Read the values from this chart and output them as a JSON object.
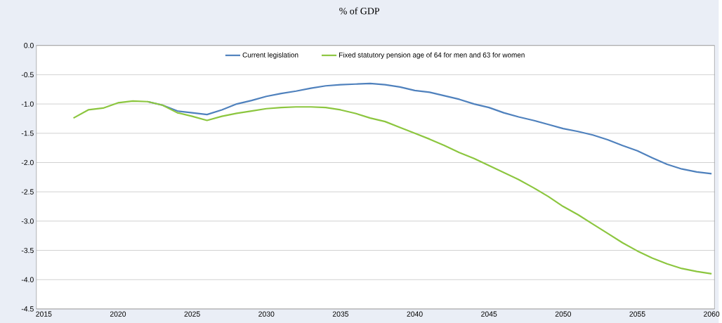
{
  "chart_data": {
    "type": "line",
    "title": "% of GDP",
    "x": [
      2017,
      2018,
      2019,
      2020,
      2021,
      2022,
      2023,
      2024,
      2025,
      2026,
      2027,
      2028,
      2029,
      2030,
      2031,
      2032,
      2033,
      2034,
      2035,
      2036,
      2037,
      2038,
      2039,
      2040,
      2041,
      2042,
      2043,
      2044,
      2045,
      2046,
      2047,
      2048,
      2049,
      2050,
      2051,
      2052,
      2053,
      2054,
      2055,
      2056,
      2057,
      2058,
      2059,
      2060
    ],
    "series": [
      {
        "name": "Current legislation",
        "color": "#4f81bd",
        "values": [
          null,
          null,
          null,
          null,
          null,
          -0.96,
          -1.02,
          -1.12,
          -1.15,
          -1.18,
          -1.1,
          -1.0,
          -0.94,
          -0.87,
          -0.82,
          -0.78,
          -0.73,
          -0.69,
          -0.67,
          -0.66,
          -0.65,
          -0.67,
          -0.71,
          -0.77,
          -0.8,
          -0.86,
          -0.92,
          -1.0,
          -1.06,
          -1.15,
          -1.22,
          -1.28,
          -1.35,
          -1.42,
          -1.47,
          -1.53,
          -1.61,
          -1.71,
          -1.8,
          -1.92,
          -2.03,
          -2.11,
          -2.16,
          -2.19
        ]
      },
      {
        "name": "Fixed statutory pension age of 64 for men and 63 for women",
        "color": "#8cc63f",
        "values": [
          -1.24,
          -1.1,
          -1.07,
          -0.98,
          -0.95,
          -0.96,
          -1.02,
          -1.15,
          -1.21,
          -1.28,
          -1.21,
          -1.16,
          -1.12,
          -1.08,
          -1.06,
          -1.05,
          -1.05,
          -1.06,
          -1.1,
          -1.16,
          -1.24,
          -1.3,
          -1.4,
          -1.5,
          -1.6,
          -1.71,
          -1.83,
          -1.93,
          -2.05,
          -2.17,
          -2.29,
          -2.43,
          -2.58,
          -2.75,
          -2.89,
          -3.05,
          -3.21,
          -3.37,
          -3.51,
          -3.63,
          -3.73,
          -3.81,
          -3.86,
          -3.9
        ]
      }
    ],
    "xlim": [
      2014.5,
      2060.2
    ],
    "xticks": [
      2015,
      2020,
      2025,
      2030,
      2035,
      2040,
      2045,
      2050,
      2055,
      2060
    ],
    "ylim": [
      -4.5,
      0
    ],
    "yticks": [
      {
        "value": -4.5,
        "label": "-4.5"
      },
      {
        "value": -4.0,
        "label": "-4.0"
      },
      {
        "value": -3.5,
        "label": "-3.5"
      },
      {
        "value": -3.0,
        "label": "-3.0"
      },
      {
        "value": -2.5,
        "label": "-2.5"
      },
      {
        "value": -2.0,
        "label": "-2.0"
      },
      {
        "value": -1.5,
        "label": "-1.5"
      },
      {
        "value": -1.0,
        "label": "-1.0"
      },
      {
        "value": -0.5,
        "label": "-0.5"
      },
      {
        "value": 0,
        "label": "0.0"
      }
    ],
    "grid": "y",
    "legend": "top",
    "line_style": "solid",
    "marker": "none"
  }
}
